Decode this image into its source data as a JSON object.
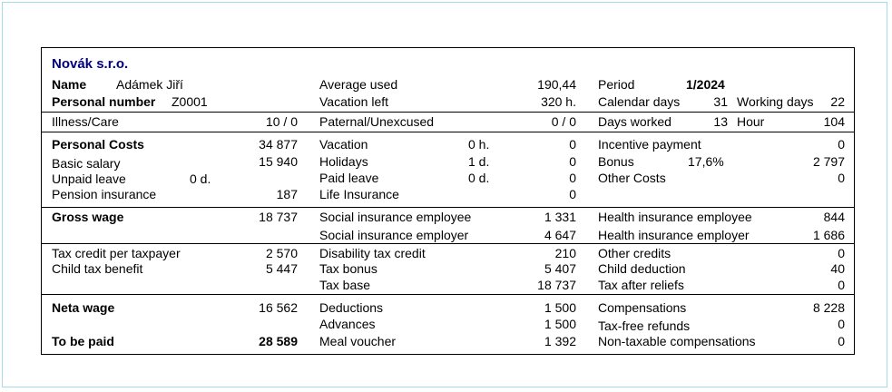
{
  "company": "Novák   s.r.o.",
  "header": {
    "name_label": "Name",
    "name_value": "Adámek Jiří",
    "personal_number_label": "Personal number",
    "personal_number_value": "Z0001",
    "average_used_label": "Average used",
    "average_used_value": "190,44",
    "vacation_left_label": "Vacation left",
    "vacation_left_value": "320 h.",
    "period_label": "Period",
    "period_value": "1/2024",
    "calendar_days_label": "Calendar days",
    "calendar_days_value": "31",
    "working_days_label": "Working days",
    "working_days_value": "22"
  },
  "attendance": {
    "illness_label": "Illness/Care",
    "illness_value": "10 / 0",
    "paternal_label": "Paternal/Unexcused",
    "paternal_value": "0 / 0",
    "days_worked_label": "Days worked",
    "days_worked_value": "13",
    "hour_label": "Hour",
    "hour_value": "104"
  },
  "costs": {
    "personal_costs_label": "Personal Costs",
    "personal_costs_value": "34 877",
    "basic_salary_label": "Basic salary",
    "basic_salary_value": "15 940",
    "unpaid_leave_label": "Unpaid leave",
    "unpaid_leave_days": "0 d.",
    "pension_label": "Pension insurance",
    "pension_value": "187",
    "vacation_label": "Vacation",
    "vacation_units": "0 h.",
    "vacation_value": "0",
    "holidays_label": "Holidays",
    "holidays_units": "1 d.",
    "holidays_value": "0",
    "paid_leave_label": "Paid leave",
    "paid_leave_units": "0 d.",
    "paid_leave_value": "0",
    "life_insurance_label": "Life Insurance",
    "life_insurance_value": "0",
    "incentive_label": "Incentive payment",
    "incentive_value": "0",
    "bonus_label": "Bonus",
    "bonus_percent": "17,6%",
    "bonus_value": "2 797",
    "other_costs_label": "Other Costs",
    "other_costs_value": "0"
  },
  "gross": {
    "gross_wage_label": "Gross wage",
    "gross_wage_value": "18 737",
    "social_employee_label": "Social insurance employee",
    "social_employee_value": "1 331",
    "social_employer_label": "Social insurance employer",
    "social_employer_value": "4 647",
    "health_employee_label": "Health insurance employee",
    "health_employee_value": "844",
    "health_employer_label": "Health insurance employer",
    "health_employer_value": "1 686"
  },
  "tax": {
    "credit_taxpayer_label": "Tax credit per taxpayer",
    "credit_taxpayer_value": "2 570",
    "child_benefit_label": "Child tax benefit",
    "child_benefit_value": "5 447",
    "disability_label": "Disability tax credit",
    "disability_value": "210",
    "tax_bonus_label": "Tax bonus",
    "tax_bonus_value": "5 407",
    "tax_base_label": "Tax base",
    "tax_base_value": "18 737",
    "other_credits_label": "Other credits",
    "other_credits_value": "0",
    "child_deduction_label": "Child deduction",
    "child_deduction_value": "40",
    "tax_after_reliefs_label": "Tax after reliefs",
    "tax_after_reliefs_value": "0"
  },
  "net": {
    "neta_wage_label": "Neta wage",
    "neta_wage_value": "16 562",
    "to_be_paid_label": "To be paid",
    "to_be_paid_value": "28 589",
    "deductions_label": "Deductions",
    "deductions_value": "1 500",
    "advances_label": "Advances",
    "advances_value": "1 500",
    "meal_voucher_label": "Meal voucher",
    "meal_voucher_value": "1 392",
    "compensations_label": "Compensations",
    "compensations_value": "8 228",
    "tax_free_label": "Tax-free refunds",
    "tax_free_value": "0",
    "non_taxable_label": "Non-taxable compensations",
    "non_taxable_value": "0"
  }
}
